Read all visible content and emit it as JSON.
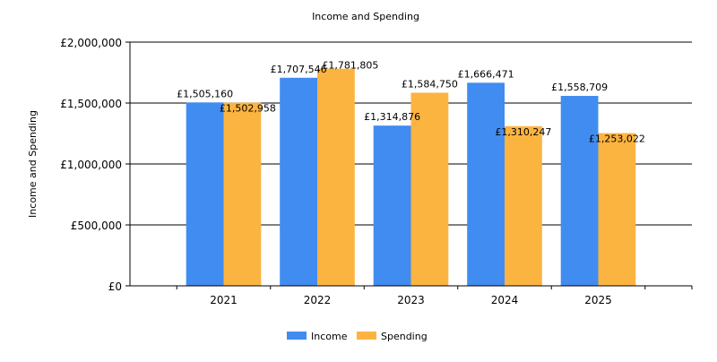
{
  "chart_data": {
    "type": "bar",
    "title": "Income and Spending",
    "xlabel": "",
    "ylabel": "Income and Spending",
    "categories": [
      "2021",
      "2022",
      "2023",
      "2024",
      "2025"
    ],
    "series": [
      {
        "name": "Income",
        "color": "#418CF0",
        "values": [
          1505160,
          1707546,
          1314876,
          1666471,
          1558709
        ],
        "labels": [
          "£1,505,160",
          "£1,707,546",
          "£1,314,876",
          "£1,666,471",
          "£1,558,709"
        ]
      },
      {
        "name": "Spending",
        "color": "#FCB441",
        "values": [
          1502958,
          1781805,
          1584750,
          1310247,
          1253022
        ],
        "labels": [
          "£1,502,958",
          "£1,781,805",
          "£1,584,750",
          "£1,310,247",
          "£1,253,022"
        ]
      }
    ],
    "ylim": [
      0,
      2000000
    ],
    "yticks": [
      0,
      500000,
      1000000,
      1500000,
      2000000
    ],
    "ytick_labels": [
      "£0",
      "£500,000",
      "£1,000,000",
      "£1,500,000",
      "£2,000,000"
    ],
    "grid": true,
    "legend_position": "bottom-center"
  }
}
